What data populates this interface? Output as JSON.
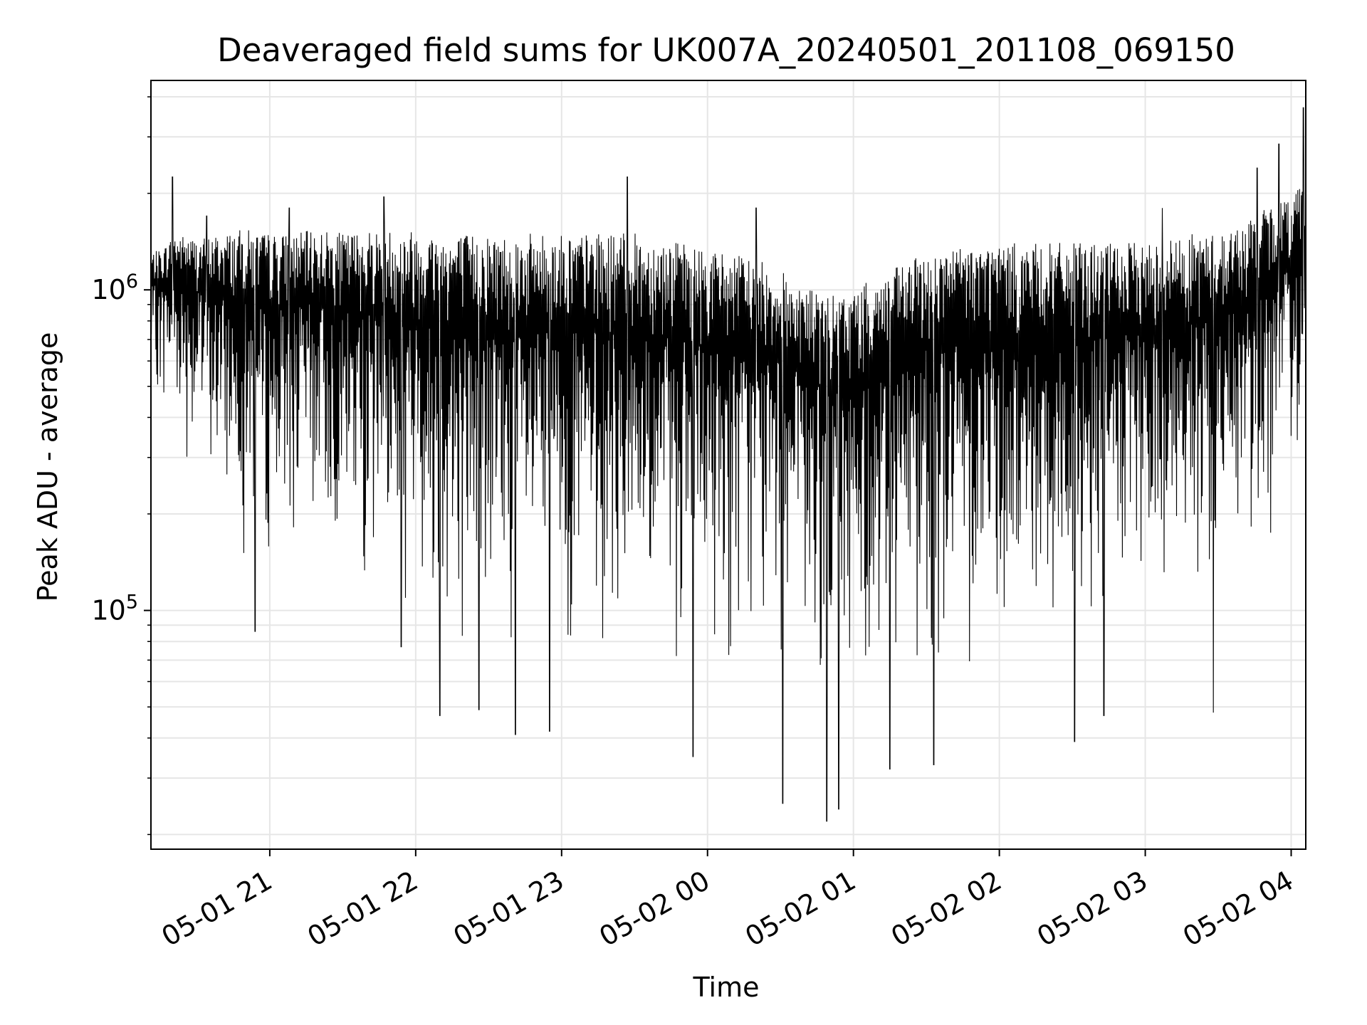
{
  "chart_data": {
    "type": "line",
    "title": "Deaveraged field sums for UK007A_20240501_201108_069150",
    "xlabel": "Time",
    "ylabel": "Peak ADU - average",
    "yscale": "log",
    "grid": true,
    "line_color": "#000000",
    "grid_color": "#e6e6e6",
    "xlim": [
      "2024-05-01T20:11:08",
      "2024-05-02T04:06:00"
    ],
    "ylim": [
      18000,
      4500000
    ],
    "x_ticks": [
      {
        "value": "2024-05-01T21:00:00",
        "label": "05-01 21"
      },
      {
        "value": "2024-05-01T22:00:00",
        "label": "05-01 22"
      },
      {
        "value": "2024-05-01T23:00:00",
        "label": "05-01 23"
      },
      {
        "value": "2024-05-02T00:00:00",
        "label": "05-02 00"
      },
      {
        "value": "2024-05-02T01:00:00",
        "label": "05-02 01"
      },
      {
        "value": "2024-05-02T02:00:00",
        "label": "05-02 02"
      },
      {
        "value": "2024-05-02T03:00:00",
        "label": "05-02 03"
      },
      {
        "value": "2024-05-02T04:00:00",
        "label": "05-02 04"
      }
    ],
    "y_ticks": [
      {
        "value": 100000,
        "base": "10",
        "exp": "5"
      },
      {
        "value": 1000000,
        "base": "10",
        "exp": "6"
      }
    ],
    "series": [
      {
        "x": [
          "2024-05-01T20:11:08",
          "2024-05-01T20:16:00",
          "2024-05-01T20:21:00",
          "2024-05-01T20:30:00",
          "2024-05-01T20:40:00",
          "2024-05-01T20:50:00",
          "2024-05-01T21:00:00",
          "2024-05-01T21:10:00",
          "2024-05-01T21:20:00",
          "2024-05-01T21:30:00",
          "2024-05-01T21:40:00",
          "2024-05-01T21:50:00",
          "2024-05-01T22:00:00",
          "2024-05-01T22:10:00",
          "2024-05-01T22:20:00",
          "2024-05-01T22:30:00",
          "2024-05-01T22:40:00",
          "2024-05-01T22:50:00",
          "2024-05-01T23:00:00",
          "2024-05-01T23:10:00",
          "2024-05-01T23:20:00",
          "2024-05-01T23:30:00",
          "2024-05-01T23:40:00",
          "2024-05-01T23:50:00",
          "2024-05-02T00:00:00",
          "2024-05-02T00:10:00",
          "2024-05-02T00:20:00",
          "2024-05-02T00:30:00",
          "2024-05-02T00:40:00",
          "2024-05-02T00:50:00",
          "2024-05-02T01:00:00",
          "2024-05-02T01:10:00",
          "2024-05-02T01:20:00",
          "2024-05-02T01:30:00",
          "2024-05-02T01:40:00",
          "2024-05-02T01:50:00",
          "2024-05-02T02:00:00",
          "2024-05-02T02:10:00",
          "2024-05-02T02:20:00",
          "2024-05-02T02:30:00",
          "2024-05-02T02:40:00",
          "2024-05-02T02:50:00",
          "2024-05-02T03:00:00",
          "2024-05-02T03:10:00",
          "2024-05-02T03:20:00",
          "2024-05-02T03:30:00",
          "2024-05-02T03:40:00",
          "2024-05-02T03:50:00",
          "2024-05-02T04:00:00",
          "2024-05-02T04:06:00"
        ],
        "upper": [
          1300000,
          1350000,
          1500000,
          1450000,
          1500000,
          1550000,
          1500000,
          1500000,
          1550000,
          1500000,
          1550000,
          1550000,
          1550000,
          1500000,
          1500000,
          1500000,
          1500000,
          1500000,
          1500000,
          1500000,
          1500000,
          1500000,
          1450000,
          1400000,
          1350000,
          1300000,
          1250000,
          1150000,
          1050000,
          950000,
          1000000,
          1100000,
          1200000,
          1300000,
          1350000,
          1400000,
          1400000,
          1400000,
          1400000,
          1400000,
          1400000,
          1400000,
          1400000,
          1450000,
          1500000,
          1500000,
          1600000,
          1800000,
          2000000,
          2300000
        ],
        "lower": [
          450000,
          400000,
          350000,
          250000,
          180000,
          140000,
          120000,
          140000,
          140000,
          120000,
          100000,
          90000,
          80000,
          75000,
          70000,
          65000,
          60000,
          58000,
          60000,
          60000,
          60000,
          60000,
          60000,
          55000,
          52000,
          58000,
          62000,
          60000,
          50000,
          42000,
          45000,
          52000,
          55000,
          58000,
          60000,
          62000,
          62000,
          60000,
          58000,
          60000,
          64000,
          68000,
          72000,
          75000,
          80000,
          90000,
          110000,
          140000,
          180000,
          350000
        ],
        "spike_values": [
          {
            "x": "2024-05-01T20:20:00",
            "y": 2250000
          },
          {
            "x": "2024-05-01T20:34:00",
            "y": 1700000
          },
          {
            "x": "2024-05-01T20:54:00",
            "y": 86000
          },
          {
            "x": "2024-05-01T21:08:00",
            "y": 1800000
          },
          {
            "x": "2024-05-01T21:47:00",
            "y": 1950000
          },
          {
            "x": "2024-05-01T21:54:00",
            "y": 77000
          },
          {
            "x": "2024-05-01T22:10:00",
            "y": 47000
          },
          {
            "x": "2024-05-01T22:26:00",
            "y": 49000
          },
          {
            "x": "2024-05-01T22:41:00",
            "y": 41000
          },
          {
            "x": "2024-05-01T22:55:00",
            "y": 42000
          },
          {
            "x": "2024-05-01T23:27:00",
            "y": 2250000
          },
          {
            "x": "2024-05-01T23:54:00",
            "y": 35000
          },
          {
            "x": "2024-05-02T00:20:00",
            "y": 1800000
          },
          {
            "x": "2024-05-02T00:31:00",
            "y": 25000
          },
          {
            "x": "2024-05-02T00:49:00",
            "y": 22000
          },
          {
            "x": "2024-05-02T00:54:00",
            "y": 24000
          },
          {
            "x": "2024-05-02T01:15:00",
            "y": 32000
          },
          {
            "x": "2024-05-02T01:33:00",
            "y": 33000
          },
          {
            "x": "2024-05-02T02:31:00",
            "y": 39000
          },
          {
            "x": "2024-05-02T02:43:00",
            "y": 47000
          },
          {
            "x": "2024-05-02T03:07:00",
            "y": 1800000
          },
          {
            "x": "2024-05-02T03:28:00",
            "y": 48000
          },
          {
            "x": "2024-05-02T03:46:00",
            "y": 2400000
          },
          {
            "x": "2024-05-02T03:55:00",
            "y": 2850000
          },
          {
            "x": "2024-05-02T04:05:00",
            "y": 3700000
          }
        ]
      }
    ]
  }
}
